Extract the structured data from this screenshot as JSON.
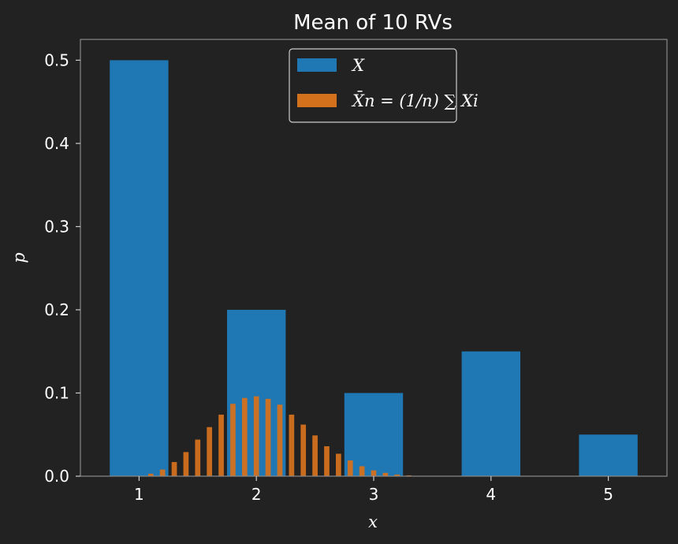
{
  "chart_data": {
    "type": "bar",
    "title": "Mean of 10 RVs",
    "xlabel": "x",
    "ylabel": "p",
    "xlim": [
      0.5,
      5.5
    ],
    "ylim": [
      0,
      0.525
    ],
    "x_ticks": [
      1,
      2,
      3,
      4,
      5
    ],
    "x_tick_labels": [
      "1",
      "2",
      "3",
      "4",
      "5"
    ],
    "y_ticks": [
      0.0,
      0.1,
      0.2,
      0.3,
      0.4,
      0.5
    ],
    "y_tick_labels": [
      "0.0",
      "0.1",
      "0.2",
      "0.3",
      "0.4",
      "0.5"
    ],
    "grid": false,
    "legend": "top-center",
    "series": [
      {
        "name": "X",
        "color": "#1f77b4",
        "bar_width": 0.5,
        "x": [
          1,
          2,
          3,
          4,
          5
        ],
        "values": [
          0.5,
          0.2,
          0.1,
          0.15,
          0.05
        ]
      },
      {
        "name": "X̄n = (1/n) ∑ Xi",
        "color": "#d4711d",
        "bar_width": 0.045,
        "x": [
          1.1,
          1.2,
          1.3,
          1.4,
          1.5,
          1.6,
          1.7,
          1.8,
          1.9,
          2.0,
          2.1,
          2.2,
          2.3,
          2.4,
          2.5,
          2.6,
          2.7,
          2.8,
          2.9,
          3.0,
          3.1,
          3.2,
          3.3
        ],
        "values": [
          0.003,
          0.008,
          0.017,
          0.029,
          0.044,
          0.059,
          0.074,
          0.087,
          0.094,
          0.096,
          0.093,
          0.086,
          0.074,
          0.062,
          0.049,
          0.036,
          0.027,
          0.019,
          0.012,
          0.007,
          0.004,
          0.002,
          0.001
        ]
      }
    ]
  },
  "colors": {
    "background": "#222222",
    "axes_edge": "#8a8a8a",
    "text": "#ffffff"
  }
}
